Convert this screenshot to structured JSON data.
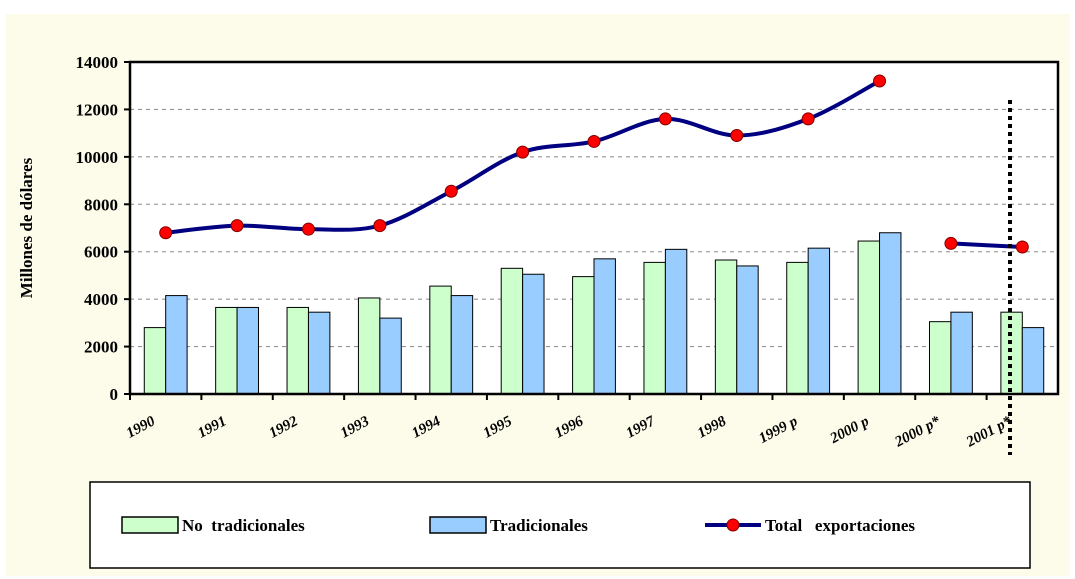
{
  "chart_data": {
    "type": "bar_line",
    "y_label": "Millones de dólares",
    "categories": [
      "1990",
      "1991",
      "1992",
      "1993",
      "1994",
      "1995",
      "1996",
      "1997",
      "1998",
      "1999 p",
      "2000 p",
      "2000 p*",
      "2001 p*"
    ],
    "series": [
      {
        "name": "No  tradicionales",
        "type": "bar",
        "color": "#ccffcc",
        "values": [
          2800,
          3650,
          3650,
          4050,
          4550,
          5300,
          4950,
          5550,
          5650,
          5550,
          6450,
          3050,
          3450
        ]
      },
      {
        "name": "Tradicionales",
        "type": "bar",
        "color": "#99ccff",
        "values": [
          4150,
          3650,
          3450,
          3200,
          4150,
          5050,
          5700,
          6100,
          5400,
          6150,
          6800,
          3450,
          2800
        ]
      },
      {
        "name": "Total   exportaciones",
        "type": "line",
        "color": "#000080",
        "marker_color": "#ff0000",
        "breaks": [
          10
        ],
        "values": [
          6800,
          7100,
          6950,
          7100,
          8550,
          10200,
          10650,
          11600,
          10900,
          11600,
          13200,
          6350,
          6200
        ]
      }
    ],
    "ylim": [
      0,
      14000
    ],
    "yticks": [
      0,
      2000,
      4000,
      6000,
      8000,
      10000,
      12000,
      14000
    ],
    "grid": true
  }
}
